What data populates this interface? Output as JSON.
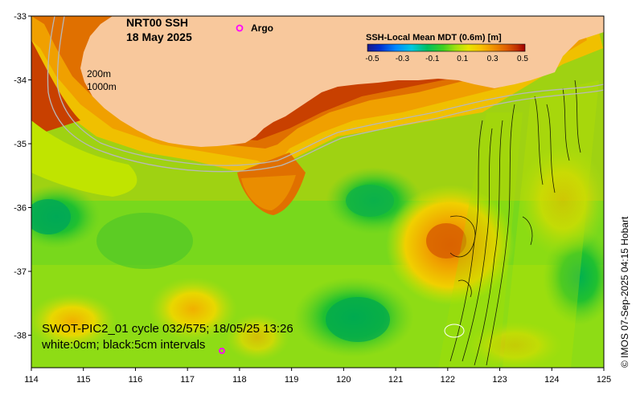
{
  "title": {
    "line1": "NRT00 SSH",
    "line2": "18 May 2025"
  },
  "legend": {
    "argo_symbol": "o",
    "argo_label": "Argo",
    "argo_color": "#ff00ff"
  },
  "colorbar": {
    "title": "SSH-Local Mean MDT (0.6m) [m]",
    "tick_labels": [
      "-0.5",
      "-0.3",
      "-0.1",
      "0.1",
      "0.3",
      "0.5"
    ],
    "colors": [
      "#1a1a8a",
      "#0030d0",
      "#0078ff",
      "#00b4ff",
      "#00d4c0",
      "#00c060",
      "#20d020",
      "#80e020",
      "#c0e800",
      "#f0e000",
      "#f8c000",
      "#f8a000",
      "#f08000",
      "#e06000",
      "#c84000",
      "#a00000"
    ]
  },
  "isobaths": {
    "label_200": "200m",
    "label_1000": "1000m"
  },
  "axes": {
    "x_ticks": [
      "114",
      "115",
      "116",
      "117",
      "118",
      "119",
      "120",
      "121",
      "122",
      "123",
      "124",
      "125"
    ],
    "y_ticks": [
      "-33",
      "-34",
      "-35",
      "-36",
      "-37",
      "-38"
    ]
  },
  "info": {
    "line1": "SWOT-PIC2_01 cycle 032/575; 18/05/25 13:26",
    "line2": "white:0cm; black:5cm intervals"
  },
  "credit": "© IMOS 07-Sep-2025 04:15 Hobart",
  "colors": {
    "land": "#f8c89c",
    "ocean_base": "#78d81c"
  }
}
